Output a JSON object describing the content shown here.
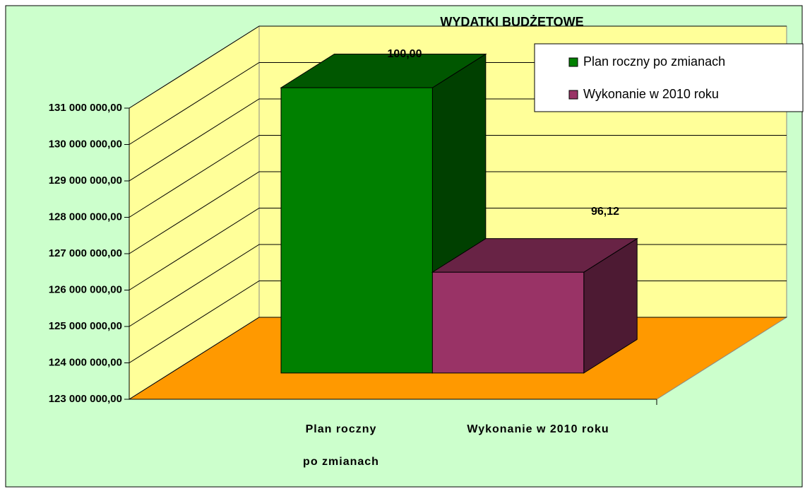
{
  "chart_data": {
    "type": "bar3d",
    "title": "WYDATKI BUDŻETOWE",
    "categories": [
      "Plan roczny po zmianach",
      "Wykonanie w 2010 roku"
    ],
    "values": [
      130840000,
      125770000
    ],
    "colors": [
      "#008000",
      "#993366"
    ],
    "annotations": [
      "100,00",
      "96,12"
    ],
    "ylim": [
      123000000,
      131000000
    ],
    "yticks": [
      {
        "value": 123000000,
        "label": "123 000 000,00"
      },
      {
        "value": 124000000,
        "label": "124 000 000,00"
      },
      {
        "value": 125000000,
        "label": "125 000 000,00"
      },
      {
        "value": 126000000,
        "label": "126 000 000,00"
      },
      {
        "value": 127000000,
        "label": "127 000 000,00"
      },
      {
        "value": 128000000,
        "label": "128 000 000,00"
      },
      {
        "value": 129000000,
        "label": "129 000 000,00"
      },
      {
        "value": 130000000,
        "label": "130 000 000,00"
      },
      {
        "value": 131000000,
        "label": "131 000 000,00"
      }
    ],
    "grid": true,
    "legend": "top-right"
  }
}
